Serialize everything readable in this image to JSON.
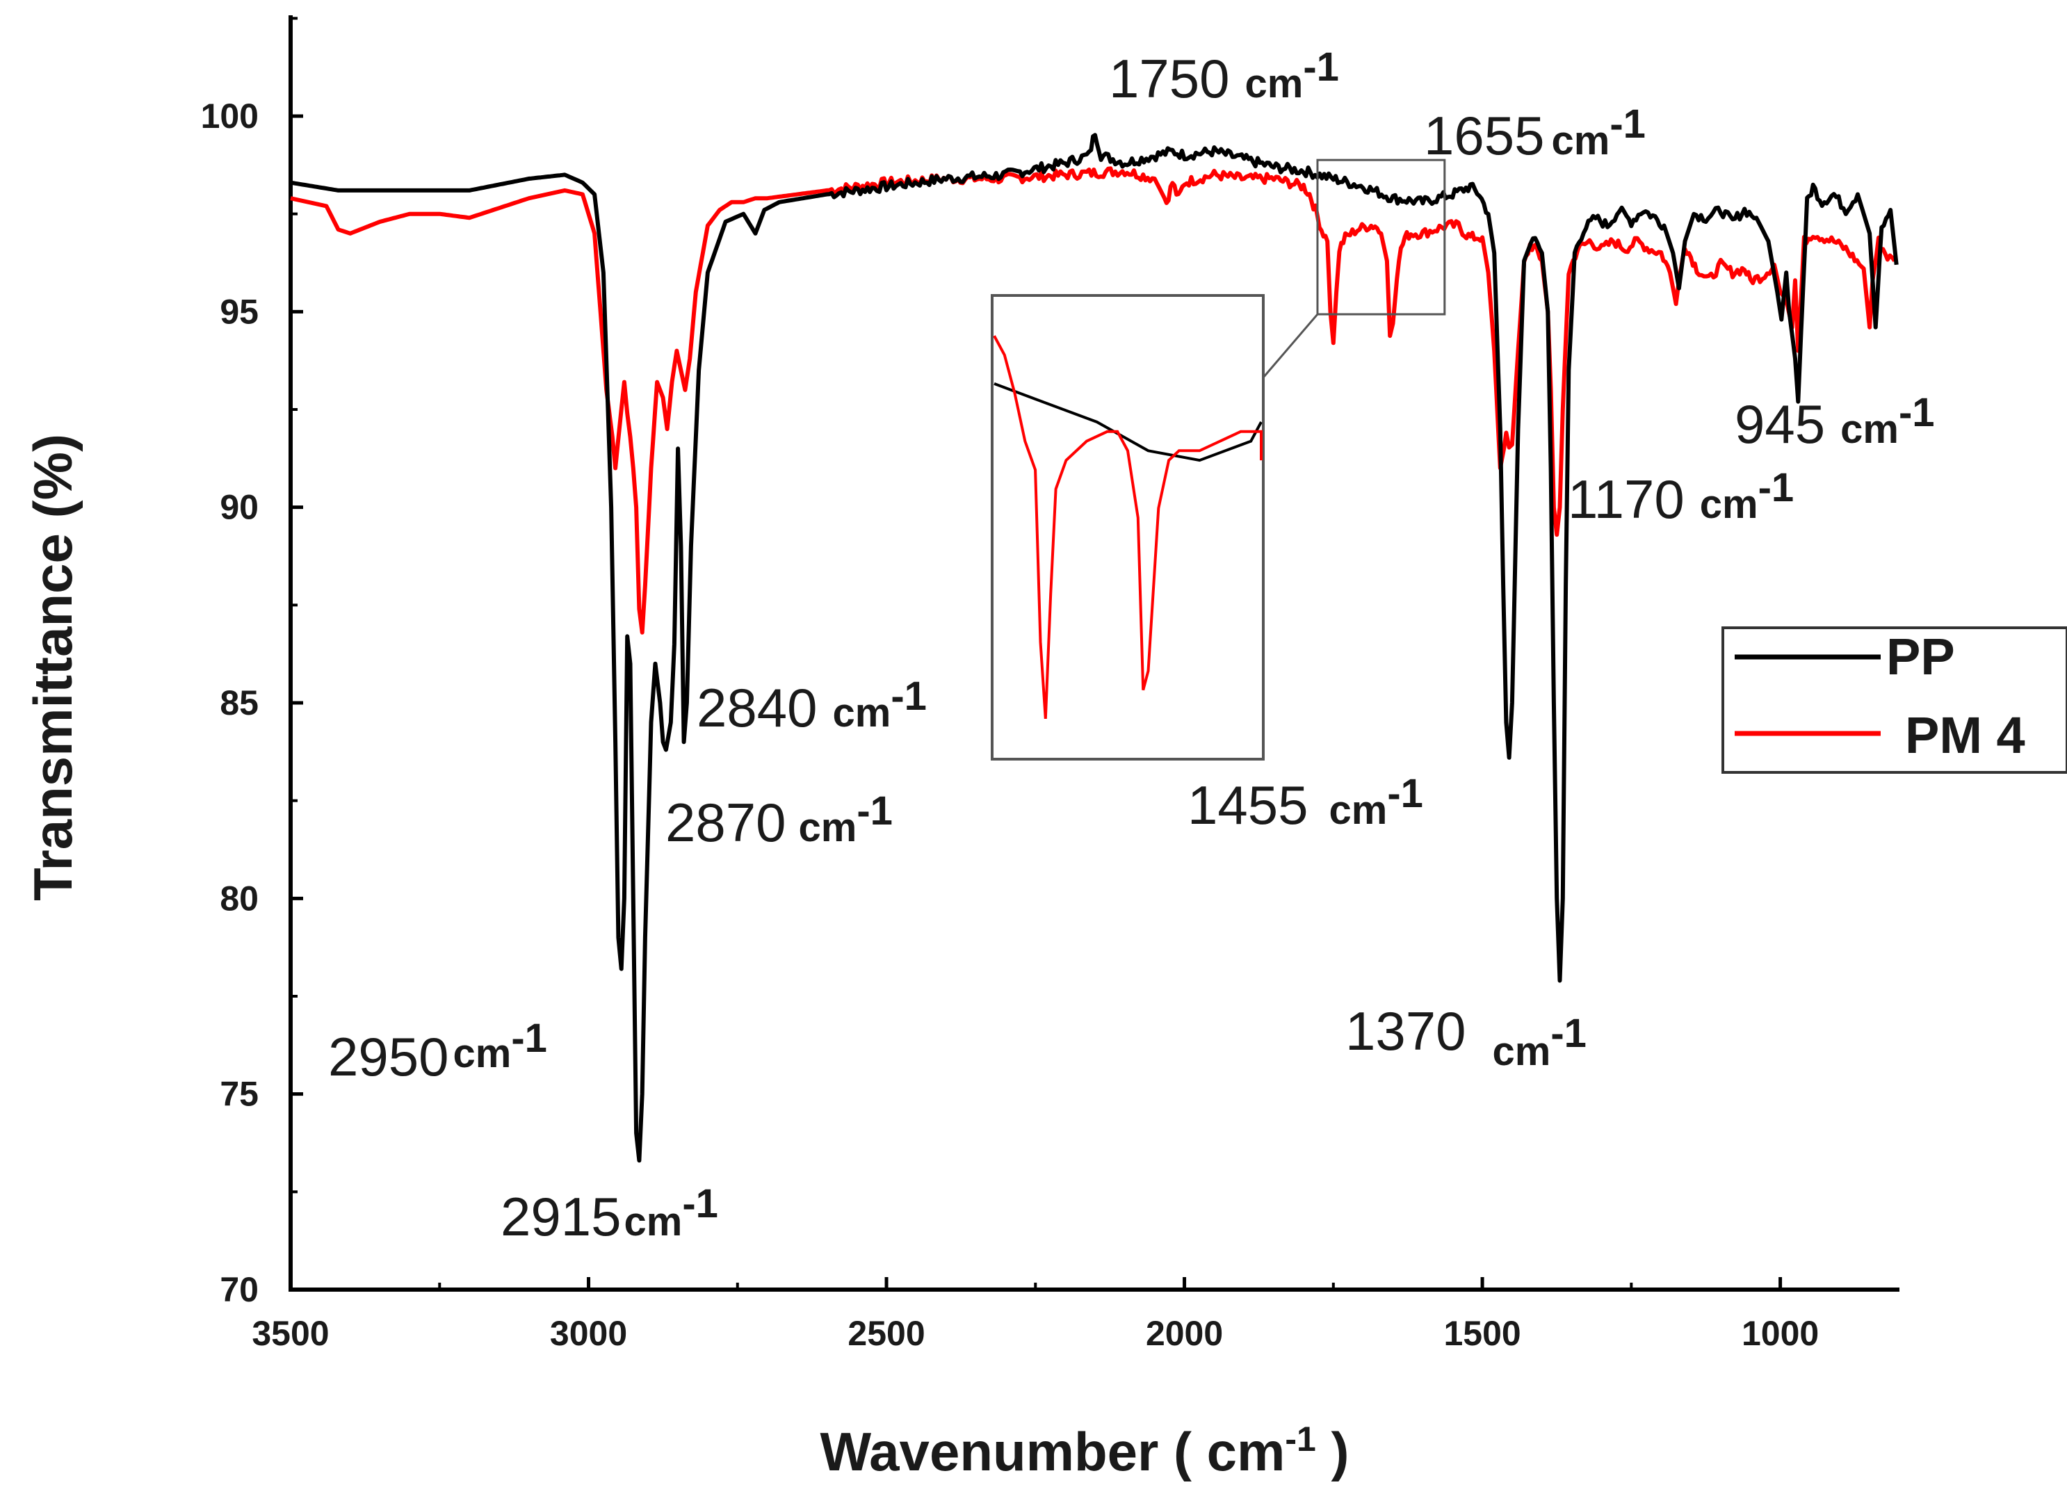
{
  "chart_data": {
    "type": "line",
    "title": "",
    "xlabel_main": "Wavenumber ( cm",
    "xlabel_sup": "-1",
    "xlabel_end": " )",
    "ylabel": "Transmittance (%)",
    "xlim": [
      3500,
      800
    ],
    "ylim": [
      70,
      102.5
    ],
    "x_ticks": [
      3500,
      3000,
      2500,
      2000,
      1500,
      1000
    ],
    "y_ticks": [
      70,
      75,
      80,
      85,
      90,
      95,
      100
    ],
    "grid": false,
    "legend_position": "right",
    "series": [
      {
        "name": "PP",
        "color": "#000000",
        "x": [
          3500,
          3420,
          3300,
          3200,
          3100,
          3040,
          3010,
          2990,
          2975,
          2962,
          2955,
          2950,
          2945,
          2940,
          2935,
          2930,
          2925,
          2920,
          2915,
          2910,
          2905,
          2895,
          2888,
          2880,
          2875,
          2870,
          2862,
          2856,
          2850,
          2845,
          2840,
          2835,
          2828,
          2815,
          2800,
          2770,
          2740,
          2720,
          2705,
          2680,
          2600,
          2500,
          2400,
          2300,
          2200,
          2160,
          2150,
          2140,
          2100,
          2020,
          2000,
          1950,
          1900,
          1850,
          1800,
          1750,
          1700,
          1650,
          1600,
          1550,
          1520,
          1505,
          1490,
          1480,
          1470,
          1465,
          1460,
          1455,
          1450,
          1440,
          1430,
          1415,
          1400,
          1390,
          1385,
          1380,
          1375,
          1370,
          1365,
          1360,
          1355,
          1345,
          1330,
          1310,
          1290,
          1270,
          1250,
          1230,
          1210,
          1195,
          1180,
          1170,
          1160,
          1145,
          1125,
          1100,
          1080,
          1060,
          1040,
          1020,
          1005,
          998,
          990,
          985,
          975,
          970,
          965,
          955,
          945,
          930,
          910,
          890,
          870,
          850,
          840,
          830,
          815,
          805
        ],
        "y": [
          98.3,
          98.1,
          98.1,
          98.1,
          98.4,
          98.5,
          98.3,
          98.0,
          96.0,
          90.0,
          84.0,
          79.0,
          78.2,
          80.0,
          86.7,
          86.0,
          80.0,
          74.0,
          73.3,
          75.0,
          79.0,
          84.5,
          86.0,
          85.0,
          84.0,
          83.8,
          84.5,
          86.5,
          91.5,
          89.0,
          84.0,
          85.0,
          89.0,
          93.5,
          96.0,
          97.3,
          97.5,
          97.0,
          97.6,
          97.8,
          98.0,
          98.2,
          98.4,
          98.5,
          98.8,
          99.0,
          99.6,
          99.0,
          98.8,
          99.1,
          99.0,
          99.1,
          98.9,
          98.7,
          98.6,
          98.4,
          98.2,
          97.9,
          97.8,
          98.0,
          98.2,
          98.0,
          97.5,
          96.5,
          92.0,
          88.0,
          84.5,
          83.6,
          85.0,
          92.0,
          96.3,
          96.9,
          96.5,
          95.0,
          91.0,
          85.0,
          80.0,
          77.9,
          80.0,
          88.0,
          93.5,
          96.5,
          97.1,
          97.4,
          97.2,
          97.6,
          97.3,
          97.6,
          97.4,
          97.2,
          96.5,
          95.6,
          96.8,
          97.5,
          97.4,
          97.6,
          97.3,
          97.6,
          97.4,
          96.8,
          95.5,
          94.8,
          96.0,
          95.0,
          93.8,
          92.7,
          94.5,
          97.8,
          98.2,
          97.8,
          98.0,
          97.6,
          98.0,
          97.0,
          94.6,
          97.2,
          97.6,
          96.2
        ]
      },
      {
        "name": "PM 4",
        "color": "#ff0000",
        "x": [
          3500,
          3440,
          3420,
          3400,
          3350,
          3300,
          3250,
          3200,
          3160,
          3100,
          3040,
          3010,
          2990,
          2980,
          2970,
          2960,
          2955,
          2945,
          2940,
          2935,
          2930,
          2925,
          2920,
          2915,
          2910,
          2905,
          2895,
          2885,
          2875,
          2868,
          2860,
          2852,
          2845,
          2838,
          2830,
          2820,
          2800,
          2780,
          2760,
          2740,
          2720,
          2700,
          2600,
          2500,
          2400,
          2300,
          2200,
          2100,
          2050,
          2030,
          2020,
          2010,
          2000,
          1950,
          1900,
          1850,
          1800,
          1790,
          1780,
          1770,
          1760,
          1755,
          1750,
          1745,
          1740,
          1730,
          1710,
          1690,
          1680,
          1670,
          1660,
          1655,
          1650,
          1640,
          1630,
          1620,
          1600,
          1580,
          1560,
          1540,
          1530,
          1520,
          1510,
          1500,
          1490,
          1480,
          1470,
          1460,
          1455,
          1450,
          1440,
          1430,
          1420,
          1410,
          1400,
          1390,
          1385,
          1380,
          1375,
          1370,
          1365,
          1355,
          1340,
          1320,
          1300,
          1280,
          1260,
          1240,
          1220,
          1200,
          1185,
          1175,
          1170,
          1160,
          1150,
          1140,
          1120,
          1100,
          1080,
          1060,
          1050,
          1030,
          1010,
          1000,
          990,
          980,
          975,
          970,
          960,
          945,
          930,
          910,
          890,
          860,
          850,
          845,
          835,
          820,
          808
        ],
        "y": [
          97.9,
          97.7,
          97.1,
          97.0,
          97.3,
          97.5,
          97.5,
          97.4,
          97.6,
          97.9,
          98.1,
          98.0,
          97.0,
          95.0,
          93.0,
          91.8,
          91.0,
          92.5,
          93.2,
          92.4,
          91.8,
          91.0,
          90.0,
          87.4,
          86.8,
          88.0,
          91.0,
          93.2,
          92.8,
          92.0,
          93.2,
          94.0,
          93.5,
          93.0,
          93.8,
          95.5,
          97.2,
          97.6,
          97.8,
          97.8,
          97.9,
          97.9,
          98.1,
          98.3,
          98.4,
          98.4,
          98.5,
          98.6,
          98.4,
          97.8,
          98.3,
          97.9,
          98.3,
          98.5,
          98.4,
          98.4,
          98.2,
          98.0,
          97.6,
          97.1,
          96.8,
          95.0,
          94.2,
          95.5,
          96.6,
          96.9,
          97.1,
          97.2,
          97.2,
          97.0,
          96.3,
          94.5,
          94.7,
          96.4,
          96.9,
          97.0,
          97.0,
          97.1,
          97.2,
          97.2,
          97.0,
          96.9,
          96.9,
          96.9,
          96.0,
          94.0,
          91.0,
          91.8,
          91.5,
          91.6,
          94.0,
          96.2,
          96.7,
          96.6,
          96.3,
          95.0,
          93.0,
          90.0,
          89.3,
          90.0,
          92.5,
          96.0,
          96.6,
          96.8,
          96.6,
          96.8,
          96.6,
          96.8,
          96.6,
          96.5,
          96.0,
          95.2,
          95.8,
          96.7,
          96.4,
          96.1,
          95.8,
          96.2,
          96.0,
          96.1,
          95.8,
          95.9,
          96.2,
          95.5,
          95.3,
          94.6,
          95.8,
          94.0,
          96.8,
          97.0,
          96.9,
          96.8,
          96.6,
          96.1,
          94.6,
          95.8,
          96.8,
          96.4,
          96.3
        ]
      }
    ],
    "annotations": [
      {
        "number": "1750",
        "unit": "cm",
        "sup": "-1",
        "anchor": "top-center"
      },
      {
        "number": "1655",
        "unit": "cm",
        "sup": "-1",
        "anchor": "top-right"
      },
      {
        "number": "945",
        "unit": "cm",
        "sup": "-1",
        "anchor": "right"
      },
      {
        "number": "1170",
        "unit": "cm",
        "sup": "-1",
        "anchor": "right"
      },
      {
        "number": "2840",
        "unit": "cm",
        "sup": "-1",
        "anchor": "center"
      },
      {
        "number": "2870",
        "unit": "cm",
        "sup": "-1",
        "anchor": "center"
      },
      {
        "number": "1455",
        "unit": "cm",
        "sup": "-1",
        "anchor": "center"
      },
      {
        "number": "1370",
        "unit": "cm",
        "sup": "-1",
        "anchor": "bottom-right"
      },
      {
        "number": "2950",
        "unit": "cm",
        "sup": "-1",
        "anchor": "bottom-left"
      },
      {
        "number": "2915",
        "unit": "cm",
        "sup": "-1",
        "anchor": "bottom"
      }
    ],
    "inset": {
      "description_region_x": [
        1800,
        1540
      ],
      "description_region_y": [
        97.6,
        98.7
      ],
      "y_range": [
        93.8,
        98.6
      ]
    }
  }
}
